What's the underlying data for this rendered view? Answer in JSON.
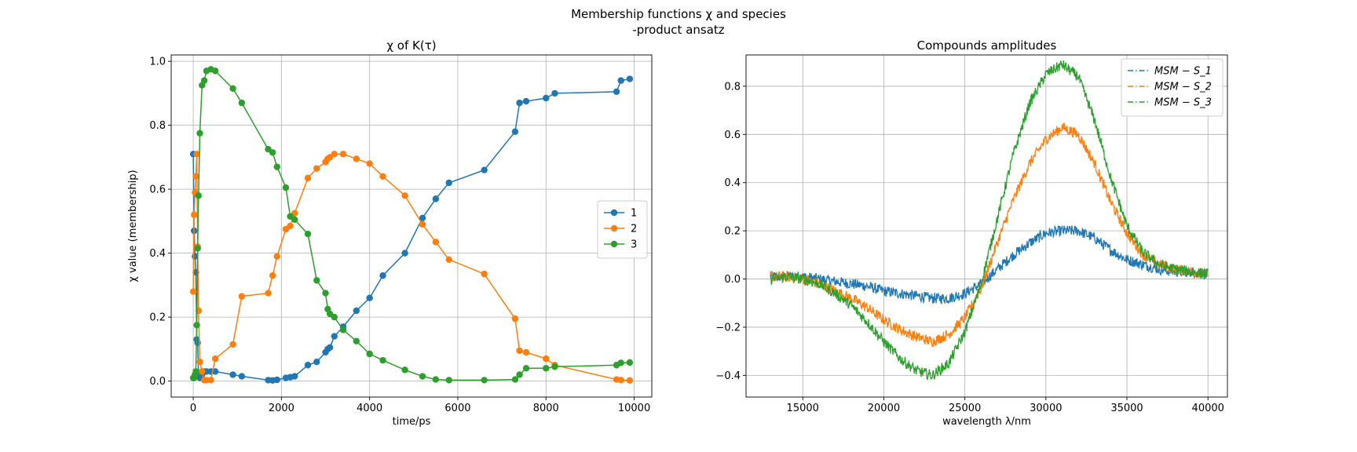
{
  "figure": {
    "suptitle_line1": "Membership functions χ and species",
    "suptitle_line2": "-product ansatz"
  },
  "colors": {
    "c1": "#1f77b4",
    "c2": "#ff7f0e",
    "c3": "#2ca02c",
    "grid": "#b0b0b0"
  },
  "chart_data": [
    {
      "type": "line",
      "title": "χ of K(τ)",
      "xlabel": "time/ps",
      "ylabel": "χ value (membership)",
      "xlim": [
        -500,
        10400
      ],
      "ylim": [
        -0.05,
        1.02
      ],
      "xticks": [
        0,
        2000,
        4000,
        6000,
        8000,
        10000
      ],
      "xtick_labels": [
        "0",
        "2000",
        "4000",
        "6000",
        "8000",
        "10000"
      ],
      "yticks": [
        0.0,
        0.2,
        0.4,
        0.6,
        0.8,
        1.0
      ],
      "ytick_labels": [
        "0.0",
        "0.2",
        "0.4",
        "0.6",
        "0.8",
        "1.0"
      ],
      "grid": true,
      "legend_position": "center-right",
      "marker": "circle",
      "x": [
        0,
        20,
        40,
        60,
        80,
        100,
        120,
        150,
        200,
        250,
        300,
        400,
        500,
        900,
        1100,
        1700,
        1800,
        1900,
        2100,
        2200,
        2300,
        2600,
        2800,
        3000,
        3050,
        3100,
        3200,
        3400,
        3700,
        4000,
        4300,
        4800,
        5200,
        5500,
        5800,
        6600,
        7300,
        7400,
        7550,
        8000,
        8200,
        9600,
        9700,
        9900
      ],
      "series": [
        {
          "name": "1",
          "color": "#1f77b4",
          "values": [
            0.71,
            0.47,
            0.39,
            0.34,
            0.13,
            0.12,
            0.02,
            0.01,
            0.02,
            0.03,
            0.03,
            0.03,
            0.03,
            0.02,
            0.015,
            0.003,
            0.002,
            0.004,
            0.01,
            0.012,
            0.015,
            0.05,
            0.06,
            0.09,
            0.1,
            0.105,
            0.14,
            0.17,
            0.22,
            0.26,
            0.33,
            0.4,
            0.51,
            0.57,
            0.62,
            0.66,
            0.78,
            0.87,
            0.875,
            0.885,
            0.9,
            0.905,
            0.94,
            0.945
          ]
        },
        {
          "name": "2",
          "color": "#ff7f0e",
          "values": [
            0.28,
            0.52,
            0.59,
            0.64,
            0.71,
            0.42,
            0.22,
            0.06,
            0.03,
            0.003,
            0.003,
            0.003,
            0.07,
            0.115,
            0.265,
            0.275,
            0.33,
            0.39,
            0.475,
            0.485,
            0.525,
            0.635,
            0.665,
            0.685,
            0.695,
            0.7,
            0.71,
            0.71,
            0.695,
            0.68,
            0.64,
            0.58,
            0.49,
            0.435,
            0.38,
            0.335,
            0.195,
            0.095,
            0.09,
            0.07,
            0.05,
            0.005,
            0.003,
            0.002
          ]
        },
        {
          "name": "3",
          "color": "#2ca02c",
          "values": [
            0.01,
            0.01,
            0.02,
            0.03,
            0.175,
            0.415,
            0.58,
            0.775,
            0.925,
            0.94,
            0.97,
            0.975,
            0.97,
            0.915,
            0.87,
            0.725,
            0.715,
            0.67,
            0.605,
            0.515,
            0.505,
            0.46,
            0.315,
            0.275,
            0.225,
            0.21,
            0.2,
            0.16,
            0.125,
            0.085,
            0.065,
            0.035,
            0.015,
            0.005,
            0.003,
            0.003,
            0.005,
            0.02,
            0.04,
            0.04,
            0.045,
            0.05,
            0.057,
            0.058
          ]
        }
      ]
    },
    {
      "type": "line",
      "title": "Compounds amplitudes",
      "xlabel": "wavelength λ/nm",
      "ylabel": "",
      "xlim": [
        11500,
        41200
      ],
      "ylim": [
        -0.49,
        0.93
      ],
      "xticks": [
        15000,
        20000,
        25000,
        30000,
        35000,
        40000
      ],
      "xtick_labels": [
        "15000",
        "20000",
        "25000",
        "30000",
        "35000",
        "40000"
      ],
      "yticks": [
        -0.4,
        -0.2,
        0.0,
        0.2,
        0.4,
        0.6,
        0.8
      ],
      "ytick_labels": [
        "−0.4",
        "−0.2",
        "0.0",
        "0.2",
        "0.4",
        "0.6",
        "0.8"
      ],
      "grid": true,
      "legend_position": "top-right",
      "linestyle": "dash-dot",
      "noisy": true,
      "x": [
        13000,
        14000,
        15000,
        16000,
        17000,
        18000,
        19000,
        20000,
        21000,
        22000,
        23000,
        24000,
        25000,
        26000,
        27000,
        28000,
        29000,
        30000,
        31000,
        32000,
        33000,
        34000,
        35000,
        36000,
        37000,
        38000,
        39000,
        40000
      ],
      "series": [
        {
          "name": "MSM − S_1",
          "color": "#1f77b4",
          "values": [
            0.01,
            0.01,
            0.01,
            0.0,
            -0.01,
            -0.02,
            -0.03,
            -0.05,
            -0.06,
            -0.07,
            -0.08,
            -0.08,
            -0.06,
            -0.02,
            0.04,
            0.1,
            0.15,
            0.19,
            0.2,
            0.2,
            0.17,
            0.12,
            0.08,
            0.06,
            0.04,
            0.03,
            0.03,
            0.02
          ]
        },
        {
          "name": "MSM − S_2",
          "color": "#ff7f0e",
          "values": [
            0.01,
            0.01,
            0.0,
            -0.02,
            -0.05,
            -0.08,
            -0.12,
            -0.17,
            -0.21,
            -0.24,
            -0.26,
            -0.23,
            -0.16,
            -0.04,
            0.15,
            0.33,
            0.48,
            0.58,
            0.63,
            0.6,
            0.48,
            0.32,
            0.19,
            0.1,
            0.06,
            0.04,
            0.03,
            0.02
          ]
        },
        {
          "name": "MSM − S_3",
          "color": "#2ca02c",
          "values": [
            0.0,
            0.01,
            0.0,
            -0.02,
            -0.06,
            -0.11,
            -0.18,
            -0.26,
            -0.33,
            -0.38,
            -0.4,
            -0.35,
            -0.22,
            -0.02,
            0.25,
            0.52,
            0.73,
            0.85,
            0.89,
            0.84,
            0.66,
            0.42,
            0.22,
            0.11,
            0.06,
            0.04,
            0.03,
            0.02
          ]
        }
      ]
    }
  ]
}
